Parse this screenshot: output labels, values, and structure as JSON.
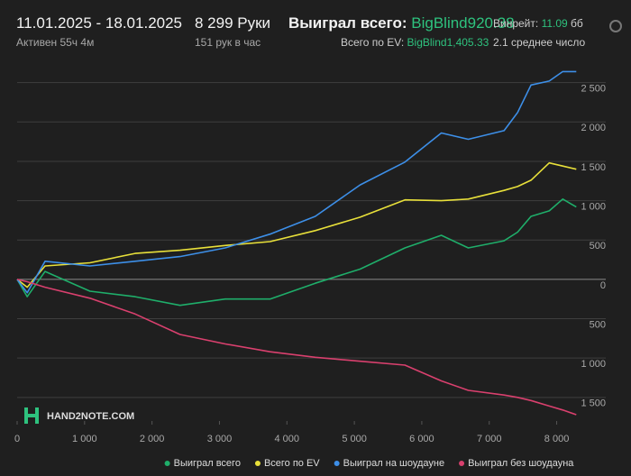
{
  "header": {
    "date_range": "11.01.2025 - 18.01.2025",
    "active": "Активен 55ч 4м",
    "hands": "8 299 Руки",
    "hands_per_hour": "151 рук в час",
    "won_total_label": "Выиграл всего:",
    "won_total_value": "BigBlind920.38",
    "ev_label": "Всего по EV:",
    "ev_value": "BigBlind1,405.33",
    "winrate_label": "Винрейт:",
    "winrate_value": "11.09",
    "winrate_unit": "бб,",
    "avg_text": "2.1 среднее число"
  },
  "chart_data": {
    "type": "line",
    "watermark": "HAND2NOTE.COM",
    "x": [
      0,
      150,
      415,
      1080,
      1750,
      2415,
      3085,
      3750,
      4420,
      5085,
      5750,
      6290,
      6690,
      7220,
      7420,
      7620,
      7890,
      8090,
      8290
    ],
    "series": [
      {
        "name": "Выиграл всего",
        "color": "#1fae6a",
        "values": [
          0,
          -220,
          100,
          -150,
          -220,
          -330,
          -250,
          -250,
          -50,
          130,
          400,
          560,
          400,
          490,
          600,
          800,
          870,
          1020,
          920
        ]
      },
      {
        "name": "Всего по EV",
        "color": "#e8e03a",
        "values": [
          0,
          -100,
          170,
          210,
          330,
          370,
          430,
          480,
          620,
          790,
          1010,
          1000,
          1020,
          1130,
          1180,
          1260,
          1480,
          1440,
          1400
        ]
      },
      {
        "name": "Выиграл на шоудауне",
        "color": "#3d8fe8",
        "values": [
          0,
          -170,
          230,
          170,
          230,
          290,
          400,
          575,
          800,
          1200,
          1490,
          1860,
          1780,
          1890,
          2120,
          2470,
          2520,
          2640,
          2640
        ]
      },
      {
        "name": "Выиграл без шоудауна",
        "color": "#d9406e",
        "values": [
          0,
          -30,
          -100,
          -240,
          -440,
          -700,
          -820,
          -920,
          -990,
          -1040,
          -1090,
          -1290,
          -1410,
          -1470,
          -1500,
          -1540,
          -1610,
          -1660,
          -1720
        ]
      }
    ],
    "xlim": [
      0,
      8300
    ],
    "ylim": [
      -1800,
      3000
    ],
    "xticks": [
      0,
      {
        "value": 1000,
        "label": "1 000"
      },
      {
        "value": 2000,
        "label": "2 000"
      },
      {
        "value": 3000,
        "label": "3 000"
      },
      {
        "value": 4000,
        "label": "4 000"
      },
      {
        "value": 5000,
        "label": "5 000"
      },
      {
        "value": 6000,
        "label": "6 000"
      },
      {
        "value": 7000,
        "label": "7 000"
      },
      {
        "value": 8000,
        "label": "8 000"
      }
    ],
    "yticks": [
      {
        "value": -1500,
        "label": "1 500"
      },
      {
        "value": -1000,
        "label": "1 000"
      },
      {
        "value": -500,
        "label": "500"
      },
      0,
      500,
      {
        "value": 1000,
        "label": "1 000"
      },
      {
        "value": 1500,
        "label": "1 500"
      },
      {
        "value": 2000,
        "label": "2 000"
      },
      {
        "value": 2500,
        "label": "2 500"
      }
    ],
    "grid": true,
    "legend": "bottom"
  }
}
